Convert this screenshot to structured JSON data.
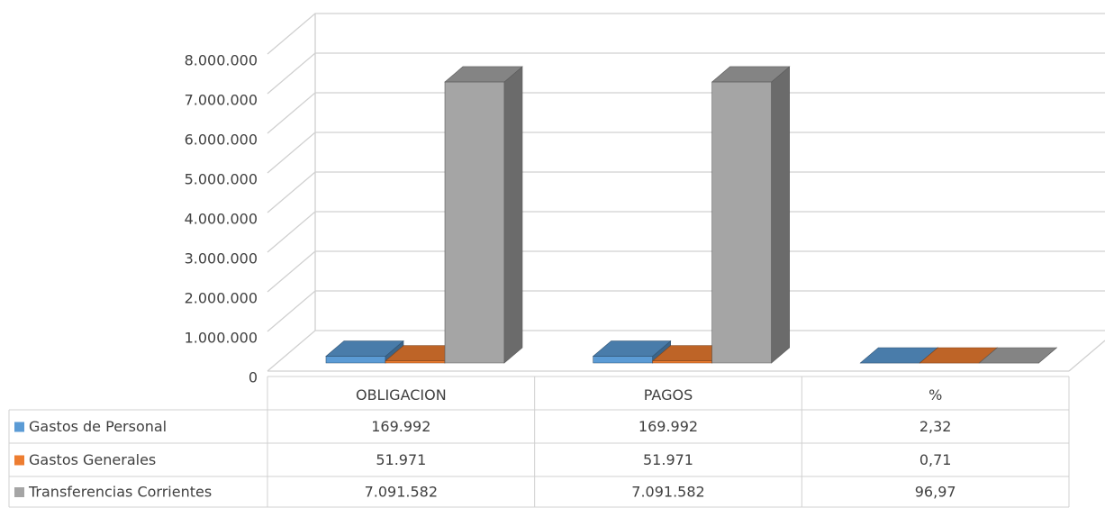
{
  "chart_data": {
    "type": "bar3d",
    "categories": [
      "OBLIGACION",
      "PAGOS",
      "%"
    ],
    "series": [
      {
        "name": "Gastos de Personal",
        "color": "#5b9bd5",
        "values": [
          169992,
          169992,
          2.32
        ],
        "value_labels": [
          "169.992",
          "169.992",
          "2,32"
        ]
      },
      {
        "name": "Gastos Generales",
        "color": "#ed7d31",
        "values": [
          51971,
          51971,
          0.71
        ],
        "value_labels": [
          "51.971",
          "51.971",
          "0,71"
        ]
      },
      {
        "name": "Transferencias Corrientes",
        "color": "#a5a5a5",
        "values": [
          7091582,
          7091582,
          96.97
        ],
        "value_labels": [
          "7.091.582",
          "7.091.582",
          "96,97"
        ]
      }
    ],
    "ylim": [
      0,
      8000000
    ],
    "yticks": [
      {
        "value": 0,
        "label": "0"
      },
      {
        "value": 1000000,
        "label": "1.000.000"
      },
      {
        "value": 2000000,
        "label": "2.000.000"
      },
      {
        "value": 3000000,
        "label": "3.000.000"
      },
      {
        "value": 4000000,
        "label": "4.000.000"
      },
      {
        "value": 5000000,
        "label": "5.000.000"
      },
      {
        "value": 6000000,
        "label": "6.000.000"
      },
      {
        "value": 7000000,
        "label": "7.000.000"
      },
      {
        "value": 8000000,
        "label": "8.000.000"
      }
    ],
    "grid": true,
    "data_table": true
  }
}
